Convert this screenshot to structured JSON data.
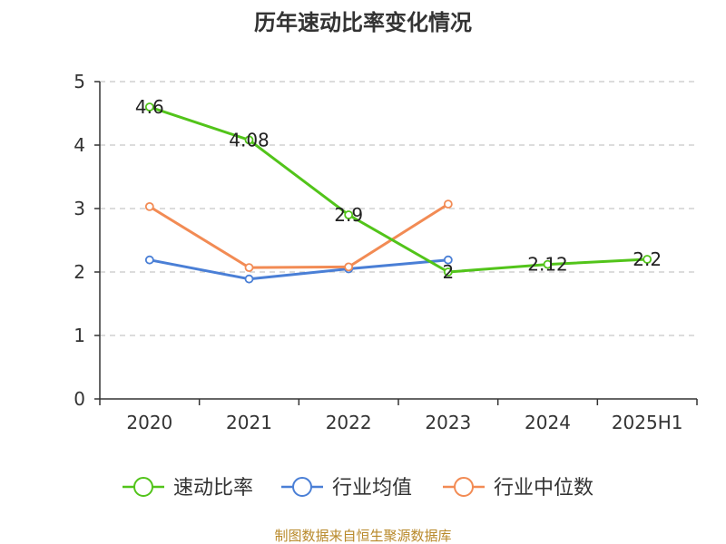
{
  "chart_data": {
    "type": "line",
    "title": "历年速动比率变化情况",
    "categories": [
      "2020",
      "2021",
      "2022",
      "2023",
      "2024",
      "2025H1"
    ],
    "ylim": [
      0,
      5
    ],
    "yticks": [
      0,
      1,
      2,
      3,
      4,
      5
    ],
    "grid": true,
    "legend_position": "bottom",
    "series": [
      {
        "name": "速动比率",
        "color": "#52c41a",
        "values": [
          4.6,
          4.08,
          2.9,
          2,
          2.12,
          2.2
        ],
        "labels": [
          "4.6",
          "4.08",
          "2.9",
          "2",
          "2.12",
          "2.2"
        ]
      },
      {
        "name": "行业均值",
        "color": "#4a7fd6",
        "values": [
          2.19,
          1.89,
          2.05,
          2.19,
          null,
          null
        ]
      },
      {
        "name": "行业中位数",
        "color": "#f28b54",
        "values": [
          3.03,
          2.07,
          2.08,
          3.07,
          null,
          null
        ]
      }
    ],
    "source": "制图数据来自恒生聚源数据库"
  }
}
